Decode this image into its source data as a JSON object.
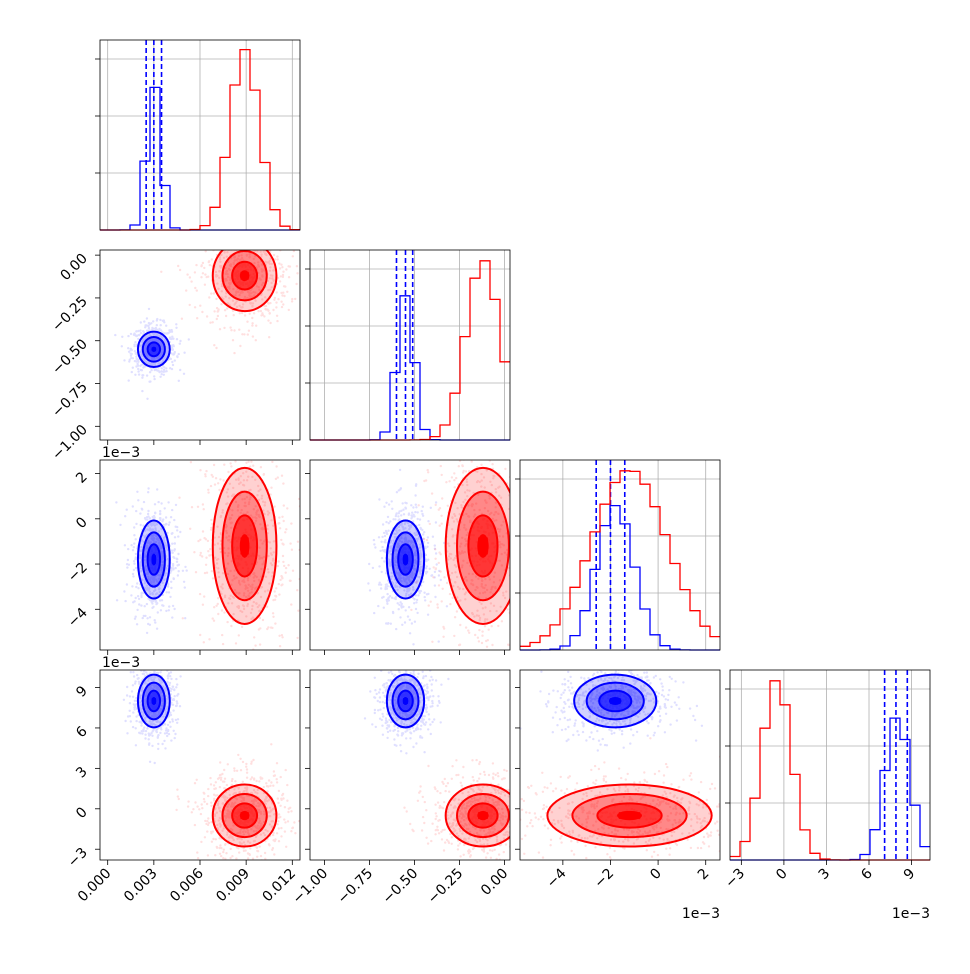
{
  "chart_data": {
    "type": "corner",
    "parameters": [
      {
        "range": [
          -0.0005,
          0.0125
        ],
        "ticks": [
          0,
          0.003,
          0.006,
          0.009,
          0.012
        ],
        "tick_labels": [
          "0.000",
          "0.003",
          "0.006",
          "0.009",
          "0.012"
        ],
        "offset_label": ""
      },
      {
        "range": [
          -1.08,
          0.03
        ],
        "ticks": [
          -1.0,
          -0.75,
          -0.5,
          -0.25,
          0.0
        ],
        "tick_labels": [
          "−1.00",
          "−0.75",
          "−0.50",
          "−0.25",
          "0.00"
        ],
        "offset_label": ""
      },
      {
        "range": [
          -5.8,
          2.6
        ],
        "ticks": [
          -4,
          -2,
          0,
          2
        ],
        "tick_labels": [
          "−4",
          "−2",
          "0",
          "2"
        ],
        "offset_label": "1e−3"
      },
      {
        "range": [
          -3.8,
          10.3
        ],
        "ticks": [
          -3,
          0,
          3,
          6,
          9
        ],
        "tick_labels": [
          "−3",
          "0",
          "3",
          "6",
          "9"
        ],
        "offset_label": "1e−3"
      }
    ],
    "series": [
      {
        "color": "#0000ff",
        "means": [
          0.003,
          -0.55,
          -1.8,
          8.0
        ],
        "sds": [
          0.00045,
          0.045,
          0.75,
          0.85
        ],
        "quantiles": [
          [
            0.0025,
            0.003,
            0.0035
          ],
          [
            -0.6,
            -0.55,
            -0.51
          ],
          [
            -2.6,
            -2.0,
            -1.4
          ],
          [
            7.1,
            7.9,
            8.7
          ]
        ]
      },
      {
        "color": "#ff0000",
        "means": [
          0.0089,
          -0.12,
          -1.2,
          -0.5
        ],
        "sds": [
          0.0009,
          0.09,
          1.5,
          1.0
        ]
      }
    ],
    "grid": true
  }
}
